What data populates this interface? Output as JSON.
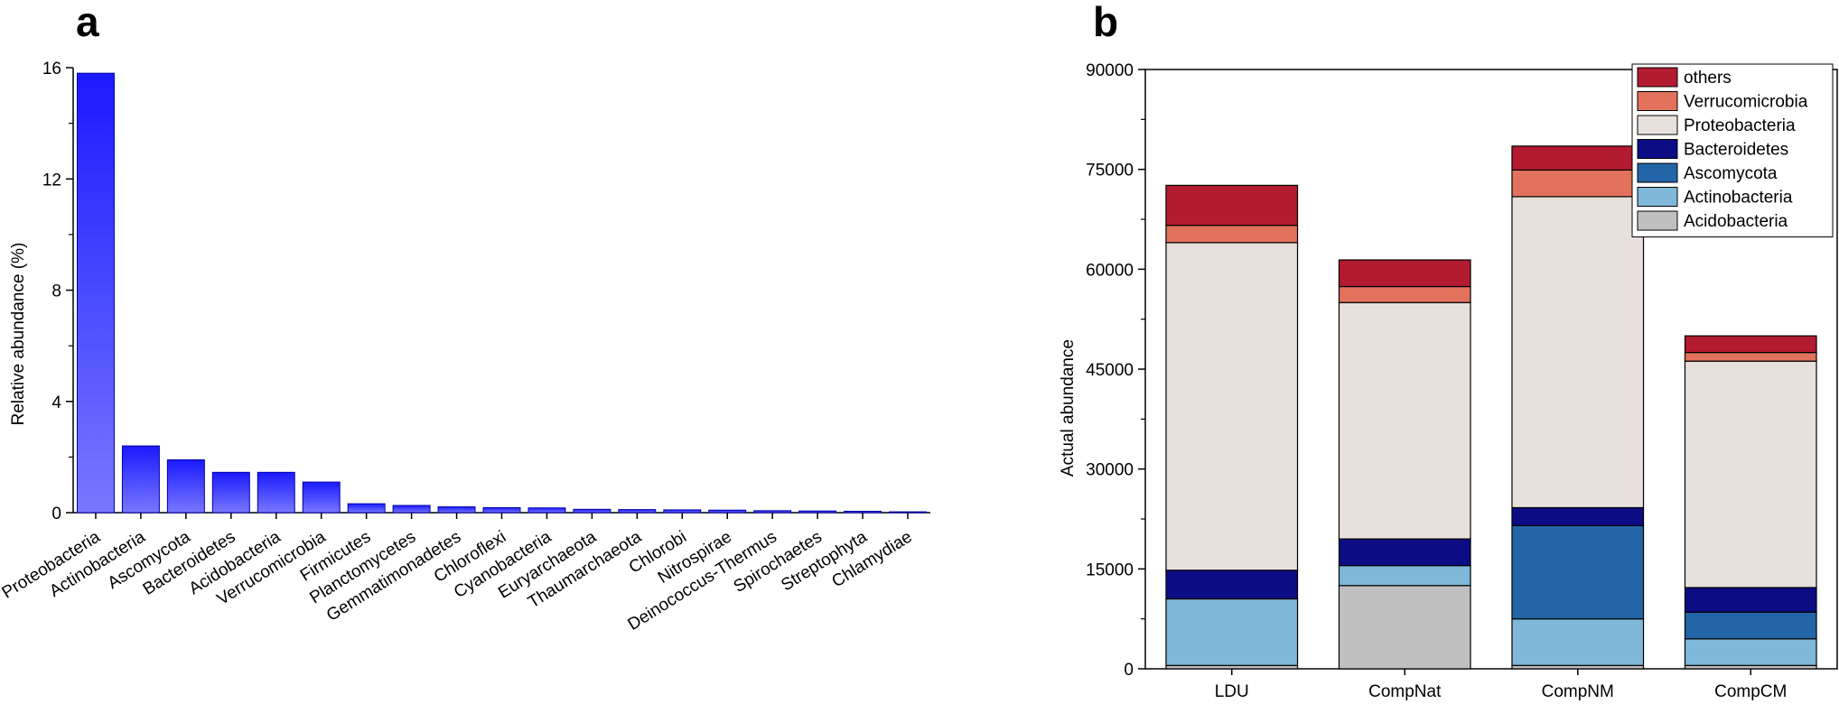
{
  "chart_data": [
    {
      "type": "bar",
      "panel_label": "a",
      "title": "",
      "xlabel": "",
      "ylabel": "Relative abundance (%)",
      "ylim": [
        0,
        16
      ],
      "yticks": [
        0,
        4,
        8,
        12,
        16
      ],
      "categories": [
        "Proteobacteria",
        "Actinobacteria",
        "Ascomycota",
        "Bacteroidetes",
        "Acidobacteria",
        "Verrucomicrobia",
        "Firmicutes",
        "Planctomycetes",
        "Gemmatimonadetes",
        "Chloroflexi",
        "Cyanobacteria",
        "Euryarchaeota",
        "Thaumarchaeota",
        "Chlorobi",
        "Nitrospirae",
        "Deinococcus-Thermus",
        "Spirochaetes",
        "Streptophyta",
        "Chlamydiae"
      ],
      "values": [
        15.8,
        2.4,
        1.9,
        1.45,
        1.45,
        1.1,
        0.32,
        0.26,
        0.21,
        0.18,
        0.17,
        0.12,
        0.11,
        0.1,
        0.09,
        0.07,
        0.06,
        0.05,
        0.03
      ],
      "bar_color": "#1a1aff",
      "bar_color_light": "#7878ff",
      "grid": false
    },
    {
      "type": "bar",
      "stacked": true,
      "panel_label": "b",
      "title": "",
      "xlabel": "",
      "ylabel": "Actual abundance",
      "ylim": [
        0,
        90000
      ],
      "yticks": [
        0,
        15000,
        30000,
        45000,
        60000,
        75000,
        90000
      ],
      "categories": [
        "LDU",
        "CompNat",
        "CompNM",
        "CompCM"
      ],
      "series": [
        {
          "name": "Acidobacteria",
          "color": "#c0c0c0",
          "values": [
            500,
            12500,
            500,
            500
          ]
        },
        {
          "name": "Actinobacteria",
          "color": "#7fb8d8",
          "values": [
            10000,
            3000,
            7000,
            4000
          ]
        },
        {
          "name": "Ascomycota",
          "color": "#2266a8",
          "values": [
            0,
            0,
            14000,
            4000
          ]
        },
        {
          "name": "Bacteroidetes",
          "color": "#0c0c85",
          "values": [
            4300,
            4000,
            2700,
            3700
          ]
        },
        {
          "name": "Proteobacteria",
          "color": "#e8e0dc",
          "values": [
            49200,
            35500,
            46700,
            34000
          ]
        },
        {
          "name": "Verrucomicrobia",
          "color": "#e2725c",
          "values": [
            2600,
            2400,
            4000,
            1300
          ]
        },
        {
          "name": "others",
          "color": "#b31b30",
          "values": [
            6000,
            4000,
            3600,
            2500
          ]
        }
      ],
      "legend_order": [
        "others",
        "Verrucomicrobia",
        "Proteobacteria",
        "Bacteroidetes",
        "Ascomycota",
        "Actinobacteria",
        "Acidobacteria"
      ],
      "legend_position": "top-right",
      "grid": false
    }
  ]
}
